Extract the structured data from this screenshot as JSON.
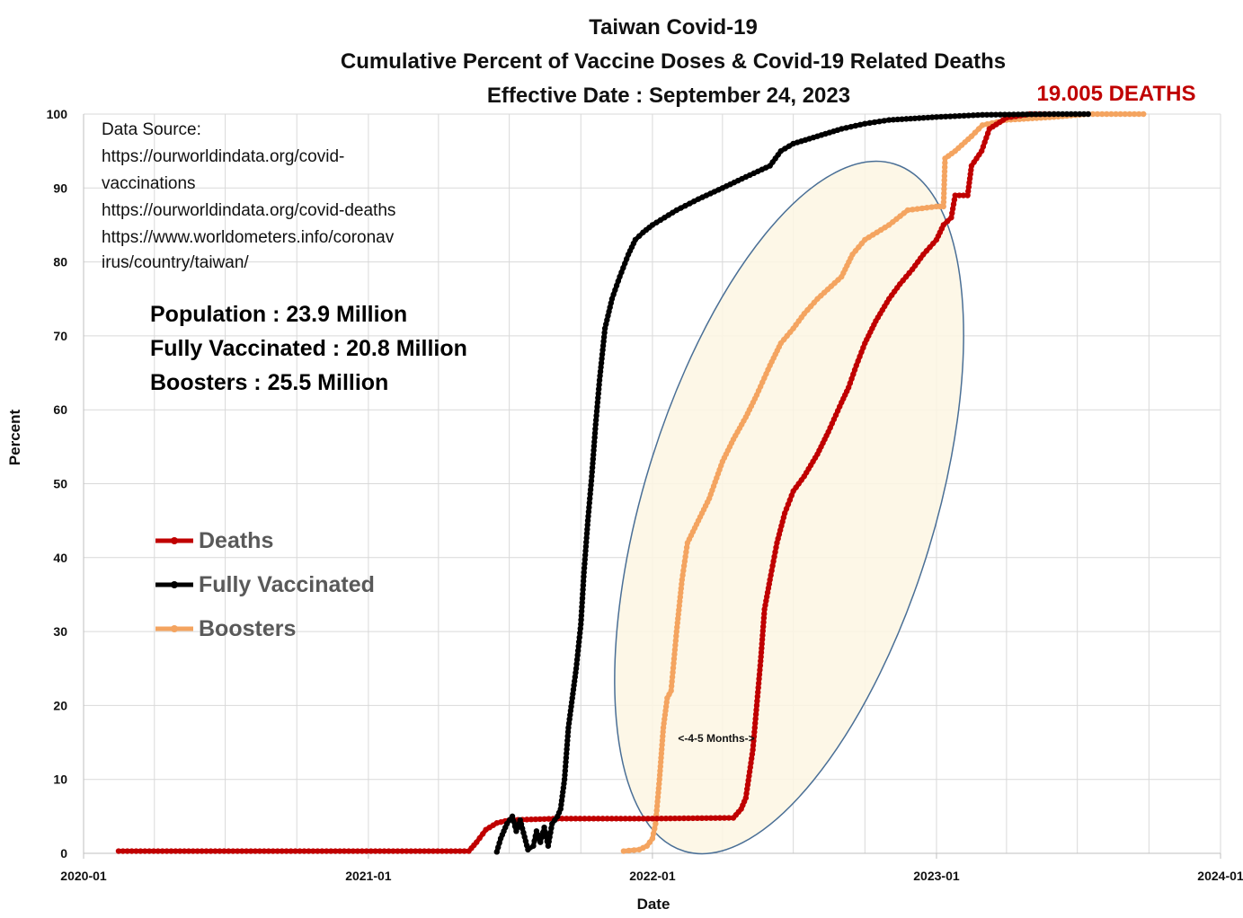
{
  "chart_data": {
    "type": "line",
    "title": [
      "Taiwan Covid-19",
      "Cumulative Percent of Vaccine Doses & Covid-19 Related Deaths",
      "Effective Date : September 24, 2023"
    ],
    "xlabel": "Date",
    "ylabel": "Percent",
    "ylim": [
      0,
      100
    ],
    "xlim": [
      "2020-01-01",
      "2024-01-01"
    ],
    "x_ticks": [
      "2020-01",
      "2021-01",
      "2022-01",
      "2023-01",
      "2024-01"
    ],
    "y_ticks": [
      0,
      10,
      20,
      30,
      40,
      50,
      60,
      70,
      80,
      90,
      100
    ],
    "grid": true,
    "legend_placement": "left-middle",
    "series": [
      {
        "name": "Deaths",
        "color": "#c00000",
        "points": [
          [
            "2020-02-15",
            0.3
          ],
          [
            "2020-06-01",
            0.3
          ],
          [
            "2020-12-01",
            0.3
          ],
          [
            "2021-05-10",
            0.3
          ],
          [
            "2021-05-20",
            1.5
          ],
          [
            "2021-06-01",
            3.2
          ],
          [
            "2021-06-15",
            4.1
          ],
          [
            "2021-07-01",
            4.5
          ],
          [
            "2021-09-01",
            4.7
          ],
          [
            "2022-01-01",
            4.7
          ],
          [
            "2022-04-15",
            4.8
          ],
          [
            "2022-04-25",
            6.0
          ],
          [
            "2022-05-01",
            7.5
          ],
          [
            "2022-05-10",
            14
          ],
          [
            "2022-05-15",
            20
          ],
          [
            "2022-05-20",
            26
          ],
          [
            "2022-05-25",
            33
          ],
          [
            "2022-06-01",
            37
          ],
          [
            "2022-06-10",
            42
          ],
          [
            "2022-06-20",
            46
          ],
          [
            "2022-07-01",
            49
          ],
          [
            "2022-07-15",
            51
          ],
          [
            "2022-08-01",
            54
          ],
          [
            "2022-08-15",
            57
          ],
          [
            "2022-09-01",
            61
          ],
          [
            "2022-09-10",
            63
          ],
          [
            "2022-09-20",
            66
          ],
          [
            "2022-10-01",
            69
          ],
          [
            "2022-10-15",
            72
          ],
          [
            "2022-11-01",
            75
          ],
          [
            "2022-11-15",
            77
          ],
          [
            "2022-12-01",
            79
          ],
          [
            "2022-12-15",
            81
          ],
          [
            "2023-01-01",
            83
          ],
          [
            "2023-01-10",
            85
          ],
          [
            "2023-01-20",
            86
          ],
          [
            "2023-01-25",
            89
          ],
          [
            "2023-02-10",
            89
          ],
          [
            "2023-02-15",
            93
          ],
          [
            "2023-02-28",
            95
          ],
          [
            "2023-03-10",
            98
          ],
          [
            "2023-04-01",
            99.5
          ],
          [
            "2023-05-01",
            100
          ],
          [
            "2023-06-01",
            100
          ]
        ]
      },
      {
        "name": "Fully Vaccinated",
        "color": "#000000",
        "points": [
          [
            "2021-06-15",
            0.2
          ],
          [
            "2021-06-20",
            2
          ],
          [
            "2021-06-28",
            4
          ],
          [
            "2021-07-05",
            5
          ],
          [
            "2021-07-10",
            3
          ],
          [
            "2021-07-15",
            4.5
          ],
          [
            "2021-07-25",
            0.5
          ],
          [
            "2021-08-01",
            1
          ],
          [
            "2021-08-05",
            3
          ],
          [
            "2021-08-10",
            1.5
          ],
          [
            "2021-08-15",
            3.5
          ],
          [
            "2021-08-20",
            1
          ],
          [
            "2021-08-25",
            4
          ],
          [
            "2021-09-01",
            5
          ],
          [
            "2021-09-05",
            6
          ],
          [
            "2021-09-10",
            10
          ],
          [
            "2021-09-15",
            17
          ],
          [
            "2021-09-20",
            21
          ],
          [
            "2021-09-25",
            25
          ],
          [
            "2021-10-01",
            31
          ],
          [
            "2021-10-05",
            38
          ],
          [
            "2021-10-10",
            45
          ],
          [
            "2021-10-15",
            51
          ],
          [
            "2021-10-20",
            58
          ],
          [
            "2021-10-25",
            64
          ],
          [
            "2021-11-01",
            71
          ],
          [
            "2021-11-10",
            75
          ],
          [
            "2021-11-20",
            78
          ],
          [
            "2021-12-01",
            81
          ],
          [
            "2021-12-10",
            83
          ],
          [
            "2021-12-20",
            84
          ],
          [
            "2022-01-01",
            85
          ],
          [
            "2022-02-01",
            87
          ],
          [
            "2022-03-01",
            88.5
          ],
          [
            "2022-04-01",
            90
          ],
          [
            "2022-05-01",
            91.5
          ],
          [
            "2022-06-01",
            93
          ],
          [
            "2022-06-15",
            95
          ],
          [
            "2022-07-01",
            96
          ],
          [
            "2022-08-01",
            97
          ],
          [
            "2022-09-01",
            98
          ],
          [
            "2022-10-01",
            98.7
          ],
          [
            "2022-11-01",
            99.2
          ],
          [
            "2023-01-01",
            99.6
          ],
          [
            "2023-03-01",
            99.9
          ],
          [
            "2023-06-01",
            100
          ],
          [
            "2023-07-15",
            100
          ]
        ]
      },
      {
        "name": "Boosters",
        "color": "#f4a460",
        "points": [
          [
            "2021-11-25",
            0.3
          ],
          [
            "2021-12-15",
            0.5
          ],
          [
            "2021-12-25",
            1
          ],
          [
            "2022-01-01",
            2
          ],
          [
            "2022-01-05",
            4
          ],
          [
            "2022-01-10",
            10
          ],
          [
            "2022-01-15",
            17
          ],
          [
            "2022-01-20",
            21
          ],
          [
            "2022-01-25",
            22
          ],
          [
            "2022-02-01",
            30
          ],
          [
            "2022-02-08",
            37
          ],
          [
            "2022-02-15",
            42
          ],
          [
            "2022-03-01",
            45
          ],
          [
            "2022-03-15",
            48
          ],
          [
            "2022-04-01",
            53
          ],
          [
            "2022-04-15",
            56
          ],
          [
            "2022-05-01",
            59
          ],
          [
            "2022-05-15",
            62
          ],
          [
            "2022-06-01",
            66
          ],
          [
            "2022-06-15",
            69
          ],
          [
            "2022-07-01",
            71
          ],
          [
            "2022-07-15",
            73
          ],
          [
            "2022-08-01",
            75
          ],
          [
            "2022-09-01",
            78
          ],
          [
            "2022-09-15",
            81
          ],
          [
            "2022-10-01",
            83
          ],
          [
            "2022-11-01",
            85
          ],
          [
            "2022-11-25",
            87
          ],
          [
            "2023-01-01",
            87.5
          ],
          [
            "2023-01-10",
            87.5
          ],
          [
            "2023-01-12",
            94
          ],
          [
            "2023-01-25",
            95
          ],
          [
            "2023-02-15",
            97
          ],
          [
            "2023-03-01",
            98.5
          ],
          [
            "2023-04-01",
            99.2
          ],
          [
            "2023-06-01",
            99.6
          ],
          [
            "2023-07-15",
            100
          ],
          [
            "2023-09-24",
            100
          ]
        ]
      }
    ],
    "annotations": {
      "deaths_label": "19.005 DEATHS",
      "interval_label": "<-4-5 Months->"
    }
  },
  "source_block": {
    "lines": [
      "Data Source:",
      "https://ourworldindata.org/covid-",
      "vaccinations",
      "https://ourworldindata.org/covid-deaths",
      "https://www.worldometers.info/coronav",
      "irus/country/taiwan/"
    ]
  },
  "stats": {
    "population": "Population : 23.9 Million",
    "fully_vaccinated": "Fully Vaccinated : 20.8 Million",
    "boosters": "Boosters : 25.5 Million"
  }
}
